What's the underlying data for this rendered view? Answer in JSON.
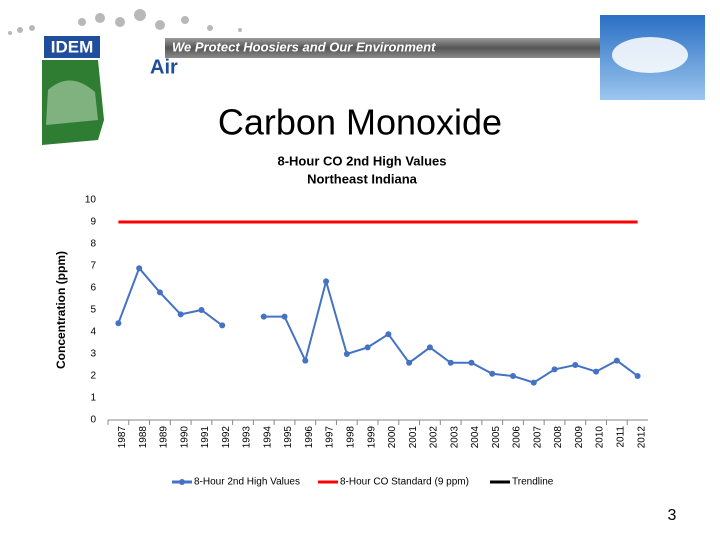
{
  "header": {
    "logo": "IDEM",
    "banner": "We Protect Hoosiers and Our Environment",
    "section": "Air"
  },
  "slide_title": "Carbon Monoxide",
  "page_number": "3",
  "chart_data": {
    "type": "line",
    "title": "8-Hour CO 2nd High Values",
    "subtitle": "Northeast Indiana",
    "y_label": "Concentration (ppm)",
    "categories": [
      "1987",
      "1988",
      "1989",
      "1990",
      "1991",
      "1992",
      "1993",
      "1994",
      "1995",
      "1996",
      "1997",
      "1998",
      "1999",
      "2000",
      "2001",
      "2002",
      "2003",
      "2004",
      "2005",
      "2006",
      "2007",
      "2008",
      "2009",
      "2010",
      "2011",
      "2012"
    ],
    "series": [
      {
        "name": "8-Hour 2nd High Values",
        "color": "#4472c4",
        "marker": true,
        "values": [
          4.4,
          6.9,
          5.8,
          4.8,
          5.0,
          4.3,
          null,
          4.7,
          4.7,
          2.7,
          6.3,
          3.0,
          3.3,
          3.9,
          2.6,
          3.3,
          2.6,
          2.6,
          2.1,
          2.0,
          1.7,
          2.3,
          2.5,
          2.2,
          2.7,
          2.0
        ]
      },
      {
        "name": "8-Hour CO Standard (9 ppm)",
        "color": "#ff0000",
        "marker": false,
        "values": [
          9,
          9,
          9,
          9,
          9,
          9,
          9,
          9,
          9,
          9,
          9,
          9,
          9,
          9,
          9,
          9,
          9,
          9,
          9,
          9,
          9,
          9,
          9,
          9,
          9,
          9
        ]
      },
      {
        "name": "Trendline",
        "color": "#000000",
        "marker": false,
        "values": [
          null,
          null,
          null,
          null,
          null,
          null,
          null,
          null,
          null,
          null,
          null,
          null,
          null,
          null,
          null,
          null,
          null,
          null,
          null,
          null,
          null,
          null,
          null,
          null,
          null,
          null
        ]
      }
    ],
    "ylim": [
      0,
      10
    ],
    "yticks": [
      0,
      1,
      2,
      3,
      4,
      5,
      6,
      7,
      8,
      9,
      10
    ],
    "grid": false,
    "legend": "bottom"
  }
}
